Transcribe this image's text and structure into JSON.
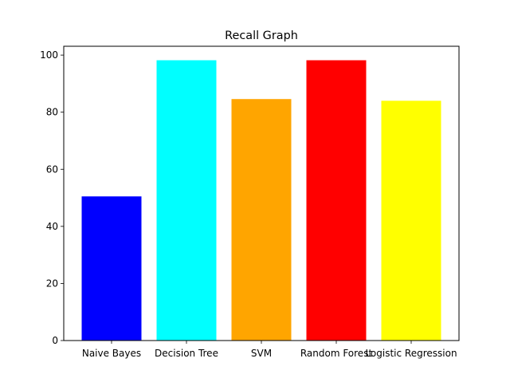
{
  "chart_data": {
    "type": "bar",
    "title": "Recall Graph",
    "xlabel": "",
    "ylabel": "",
    "categories": [
      "Naive Bayes",
      "Decision Tree",
      "SVM",
      "Random Forest",
      "Logistic Regression"
    ],
    "values": [
      50.5,
      98.2,
      84.6,
      98.2,
      84.0
    ],
    "colors": [
      "#0000ff",
      "#00ffff",
      "#ffa500",
      "#ff0000",
      "#ffff00"
    ],
    "ylim": [
      0,
      103.1
    ],
    "yticks": [
      0,
      20,
      40,
      60,
      80,
      100
    ],
    "grid": false,
    "legend": "none"
  }
}
